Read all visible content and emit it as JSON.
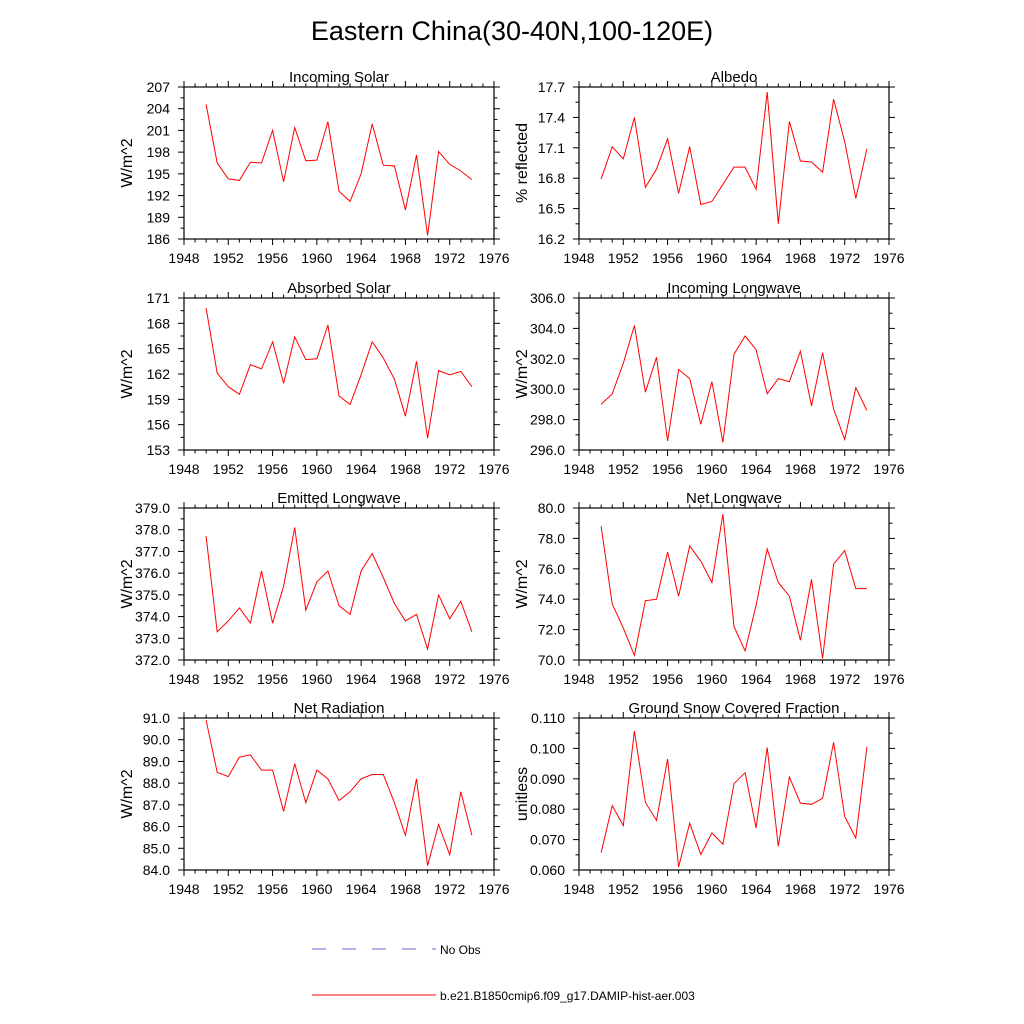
{
  "figure_title": "Eastern China(30-40N,100-120E)",
  "chart_data": [
    {
      "type": "line",
      "title": "Incoming Solar",
      "ylabel": "W/m^2",
      "xlim": [
        1948,
        1976
      ],
      "xticks": [
        1948,
        1952,
        1956,
        1960,
        1964,
        1968,
        1972,
        1976
      ],
      "ylim": [
        186,
        207
      ],
      "yticks": [
        "186",
        "189",
        "192",
        "195",
        "198",
        "201",
        "204",
        "207"
      ],
      "x": [
        1950,
        1951,
        1952,
        1953,
        1954,
        1955,
        1956,
        1957,
        1958,
        1959,
        1960,
        1961,
        1962,
        1963,
        1964,
        1965,
        1966,
        1967,
        1968,
        1969,
        1970,
        1971,
        1972,
        1973,
        1974
      ],
      "series": [
        {
          "name": "b.e21.B1850cmip6.f09_g17.DAMIP-hist-aer.003",
          "color": "#ff0000",
          "values": [
            204.6,
            196.5,
            194.3,
            194.1,
            196.6,
            196.5,
            201.0,
            193.9,
            201.4,
            196.8,
            196.9,
            202.2,
            192.6,
            191.2,
            195.0,
            201.9,
            196.2,
            196.1,
            190.0,
            197.6,
            186.5,
            198.1,
            196.3,
            195.4,
            194.2
          ]
        }
      ]
    },
    {
      "type": "line",
      "title": "Albedo",
      "ylabel": "% reflected",
      "xlim": [
        1948,
        1976
      ],
      "xticks": [
        1948,
        1952,
        1956,
        1960,
        1964,
        1968,
        1972,
        1976
      ],
      "ylim": [
        16.2,
        17.7
      ],
      "yticks": [
        "16.2",
        "16.5",
        "16.8",
        "17.1",
        "17.4",
        "17.7"
      ],
      "x": [
        1950,
        1951,
        1952,
        1953,
        1954,
        1955,
        1956,
        1957,
        1958,
        1959,
        1960,
        1961,
        1962,
        1963,
        1964,
        1965,
        1966,
        1967,
        1968,
        1969,
        1970,
        1971,
        1972,
        1973,
        1974
      ],
      "series": [
        {
          "name": "b.e21.B1850cmip6.f09_g17.DAMIP-hist-aer.003",
          "color": "#ff0000",
          "values": [
            16.79,
            17.11,
            16.99,
            17.4,
            16.71,
            16.89,
            17.19,
            16.65,
            17.11,
            16.54,
            16.57,
            16.74,
            16.91,
            16.91,
            16.69,
            17.65,
            16.35,
            17.36,
            16.97,
            16.96,
            16.86,
            17.58,
            17.16,
            16.6,
            17.09
          ]
        }
      ]
    },
    {
      "type": "line",
      "title": "Absorbed Solar",
      "ylabel": "W/m^2",
      "xlim": [
        1948,
        1976
      ],
      "xticks": [
        1948,
        1952,
        1956,
        1960,
        1964,
        1968,
        1972,
        1976
      ],
      "ylim": [
        153,
        171
      ],
      "yticks": [
        "153",
        "156",
        "159",
        "162",
        "165",
        "168",
        "171"
      ],
      "x": [
        1950,
        1951,
        1952,
        1953,
        1954,
        1955,
        1956,
        1957,
        1958,
        1959,
        1960,
        1961,
        1962,
        1963,
        1964,
        1965,
        1966,
        1967,
        1968,
        1969,
        1970,
        1971,
        1972,
        1973,
        1974
      ],
      "series": [
        {
          "name": "b.e21.B1850cmip6.f09_g17.DAMIP-hist-aer.003",
          "color": "#ff0000",
          "values": [
            169.8,
            162.1,
            160.5,
            159.6,
            163.1,
            162.6,
            165.8,
            160.9,
            166.4,
            163.7,
            163.8,
            167.8,
            159.4,
            158.4,
            161.9,
            165.8,
            163.9,
            161.4,
            157.0,
            163.5,
            154.4,
            162.4,
            161.9,
            162.3,
            160.5
          ]
        }
      ]
    },
    {
      "type": "line",
      "title": "Incoming Longwave",
      "ylabel": "W/m^2",
      "xlim": [
        1948,
        1976
      ],
      "xticks": [
        1948,
        1952,
        1956,
        1960,
        1964,
        1968,
        1972,
        1976
      ],
      "ylim": [
        296.0,
        306.0
      ],
      "yticks": [
        "296.0",
        "298.0",
        "300.0",
        "302.0",
        "304.0",
        "306.0"
      ],
      "x": [
        1950,
        1951,
        1952,
        1953,
        1954,
        1955,
        1956,
        1957,
        1958,
        1959,
        1960,
        1961,
        1962,
        1963,
        1964,
        1965,
        1966,
        1967,
        1968,
        1969,
        1970,
        1971,
        1972,
        1973,
        1974
      ],
      "series": [
        {
          "name": "b.e21.B1850cmip6.f09_g17.DAMIP-hist-aer.003",
          "color": "#ff0000",
          "values": [
            299.0,
            299.7,
            301.7,
            304.2,
            299.8,
            302.1,
            296.6,
            301.3,
            300.7,
            297.7,
            300.5,
            296.5,
            302.3,
            303.5,
            302.6,
            299.7,
            300.7,
            300.5,
            302.5,
            298.9,
            302.4,
            298.7,
            296.7,
            300.1,
            298.6
          ]
        }
      ]
    },
    {
      "type": "line",
      "title": "Emitted Longwave",
      "ylabel": "W/m^2",
      "xlim": [
        1948,
        1976
      ],
      "xticks": [
        1948,
        1952,
        1956,
        1960,
        1964,
        1968,
        1972,
        1976
      ],
      "ylim": [
        372.0,
        379.0
      ],
      "yticks": [
        "372.0",
        "373.0",
        "374.0",
        "375.0",
        "376.0",
        "377.0",
        "378.0",
        "379.0"
      ],
      "x": [
        1950,
        1951,
        1952,
        1953,
        1954,
        1955,
        1956,
        1957,
        1958,
        1959,
        1960,
        1961,
        1962,
        1963,
        1964,
        1965,
        1966,
        1967,
        1968,
        1969,
        1970,
        1971,
        1972,
        1973,
        1974
      ],
      "series": [
        {
          "name": "b.e21.B1850cmip6.f09_g17.DAMIP-hist-aer.003",
          "color": "#ff0000",
          "values": [
            377.7,
            373.3,
            373.8,
            374.4,
            373.7,
            376.1,
            373.7,
            375.4,
            378.1,
            374.3,
            375.6,
            376.1,
            374.5,
            374.1,
            376.1,
            376.9,
            375.8,
            374.6,
            373.8,
            374.1,
            372.5,
            375.0,
            373.9,
            374.7,
            373.3
          ]
        }
      ]
    },
    {
      "type": "line",
      "title": "Net Longwave",
      "ylabel": "W/m^2",
      "xlim": [
        1948,
        1976
      ],
      "xticks": [
        1948,
        1952,
        1956,
        1960,
        1964,
        1968,
        1972,
        1976
      ],
      "ylim": [
        70.0,
        80.0
      ],
      "yticks": [
        "70.0",
        "72.0",
        "74.0",
        "76.0",
        "78.0",
        "80.0"
      ],
      "x": [
        1950,
        1951,
        1952,
        1953,
        1954,
        1955,
        1956,
        1957,
        1958,
        1959,
        1960,
        1961,
        1962,
        1963,
        1964,
        1965,
        1966,
        1967,
        1968,
        1969,
        1970,
        1971,
        1972,
        1973,
        1974
      ],
      "series": [
        {
          "name": "b.e21.B1850cmip6.f09_g17.DAMIP-hist-aer.003",
          "color": "#ff0000",
          "values": [
            78.8,
            73.7,
            72.1,
            70.3,
            73.9,
            74.0,
            77.1,
            74.2,
            77.5,
            76.5,
            75.1,
            79.6,
            72.2,
            70.6,
            73.6,
            77.3,
            75.1,
            74.2,
            71.3,
            75.3,
            70.1,
            76.3,
            77.2,
            74.7,
            74.7
          ]
        }
      ]
    },
    {
      "type": "line",
      "title": "Net Radiation",
      "ylabel": "W/m^2",
      "xlim": [
        1948,
        1976
      ],
      "xticks": [
        1948,
        1952,
        1956,
        1960,
        1964,
        1968,
        1972,
        1976
      ],
      "ylim": [
        84.0,
        91.0
      ],
      "yticks": [
        "84.0",
        "85.0",
        "86.0",
        "87.0",
        "88.0",
        "89.0",
        "90.0",
        "91.0"
      ],
      "x": [
        1950,
        1951,
        1952,
        1953,
        1954,
        1955,
        1956,
        1957,
        1958,
        1959,
        1960,
        1961,
        1962,
        1963,
        1964,
        1965,
        1966,
        1967,
        1968,
        1969,
        1970,
        1971,
        1972,
        1973,
        1974
      ],
      "series": [
        {
          "name": "b.e21.B1850cmip6.f09_g17.DAMIP-hist-aer.003",
          "color": "#ff0000",
          "values": [
            90.9,
            88.5,
            88.3,
            89.2,
            89.3,
            88.6,
            88.6,
            86.7,
            88.9,
            87.1,
            88.6,
            88.2,
            87.2,
            87.6,
            88.2,
            88.4,
            88.4,
            87.1,
            85.6,
            88.2,
            84.2,
            86.1,
            84.7,
            87.6,
            85.6
          ]
        }
      ]
    },
    {
      "type": "line",
      "title": "Ground Snow Covered Fraction",
      "ylabel": "unitless",
      "xlim": [
        1948,
        1976
      ],
      "xticks": [
        1948,
        1952,
        1956,
        1960,
        1964,
        1968,
        1972,
        1976
      ],
      "ylim": [
        0.06,
        0.11
      ],
      "yticks": [
        "0.060",
        "0.070",
        "0.080",
        "0.090",
        "0.100",
        "0.110"
      ],
      "x": [
        1950,
        1951,
        1952,
        1953,
        1954,
        1955,
        1956,
        1957,
        1958,
        1959,
        1960,
        1961,
        1962,
        1963,
        1964,
        1965,
        1966,
        1967,
        1968,
        1969,
        1970,
        1971,
        1972,
        1973,
        1974
      ],
      "series": [
        {
          "name": "b.e21.B1850cmip6.f09_g17.DAMIP-hist-aer.003",
          "color": "#ff0000",
          "values": [
            0.0657,
            0.0812,
            0.0746,
            0.1057,
            0.0822,
            0.0763,
            0.0965,
            0.061,
            0.0754,
            0.0651,
            0.0722,
            0.0685,
            0.0884,
            0.092,
            0.0738,
            0.1003,
            0.0678,
            0.0906,
            0.082,
            0.0816,
            0.0836,
            0.102,
            0.0776,
            0.0705,
            0.1005
          ]
        }
      ]
    }
  ],
  "legend": [
    {
      "label": "No Obs",
      "color": "#6a6ad8",
      "style": "dashed"
    },
    {
      "label": "b.e21.B1850cmip6.f09_g17.DAMIP-hist-aer.003",
      "color": "#ff0000",
      "style": "solid"
    }
  ]
}
